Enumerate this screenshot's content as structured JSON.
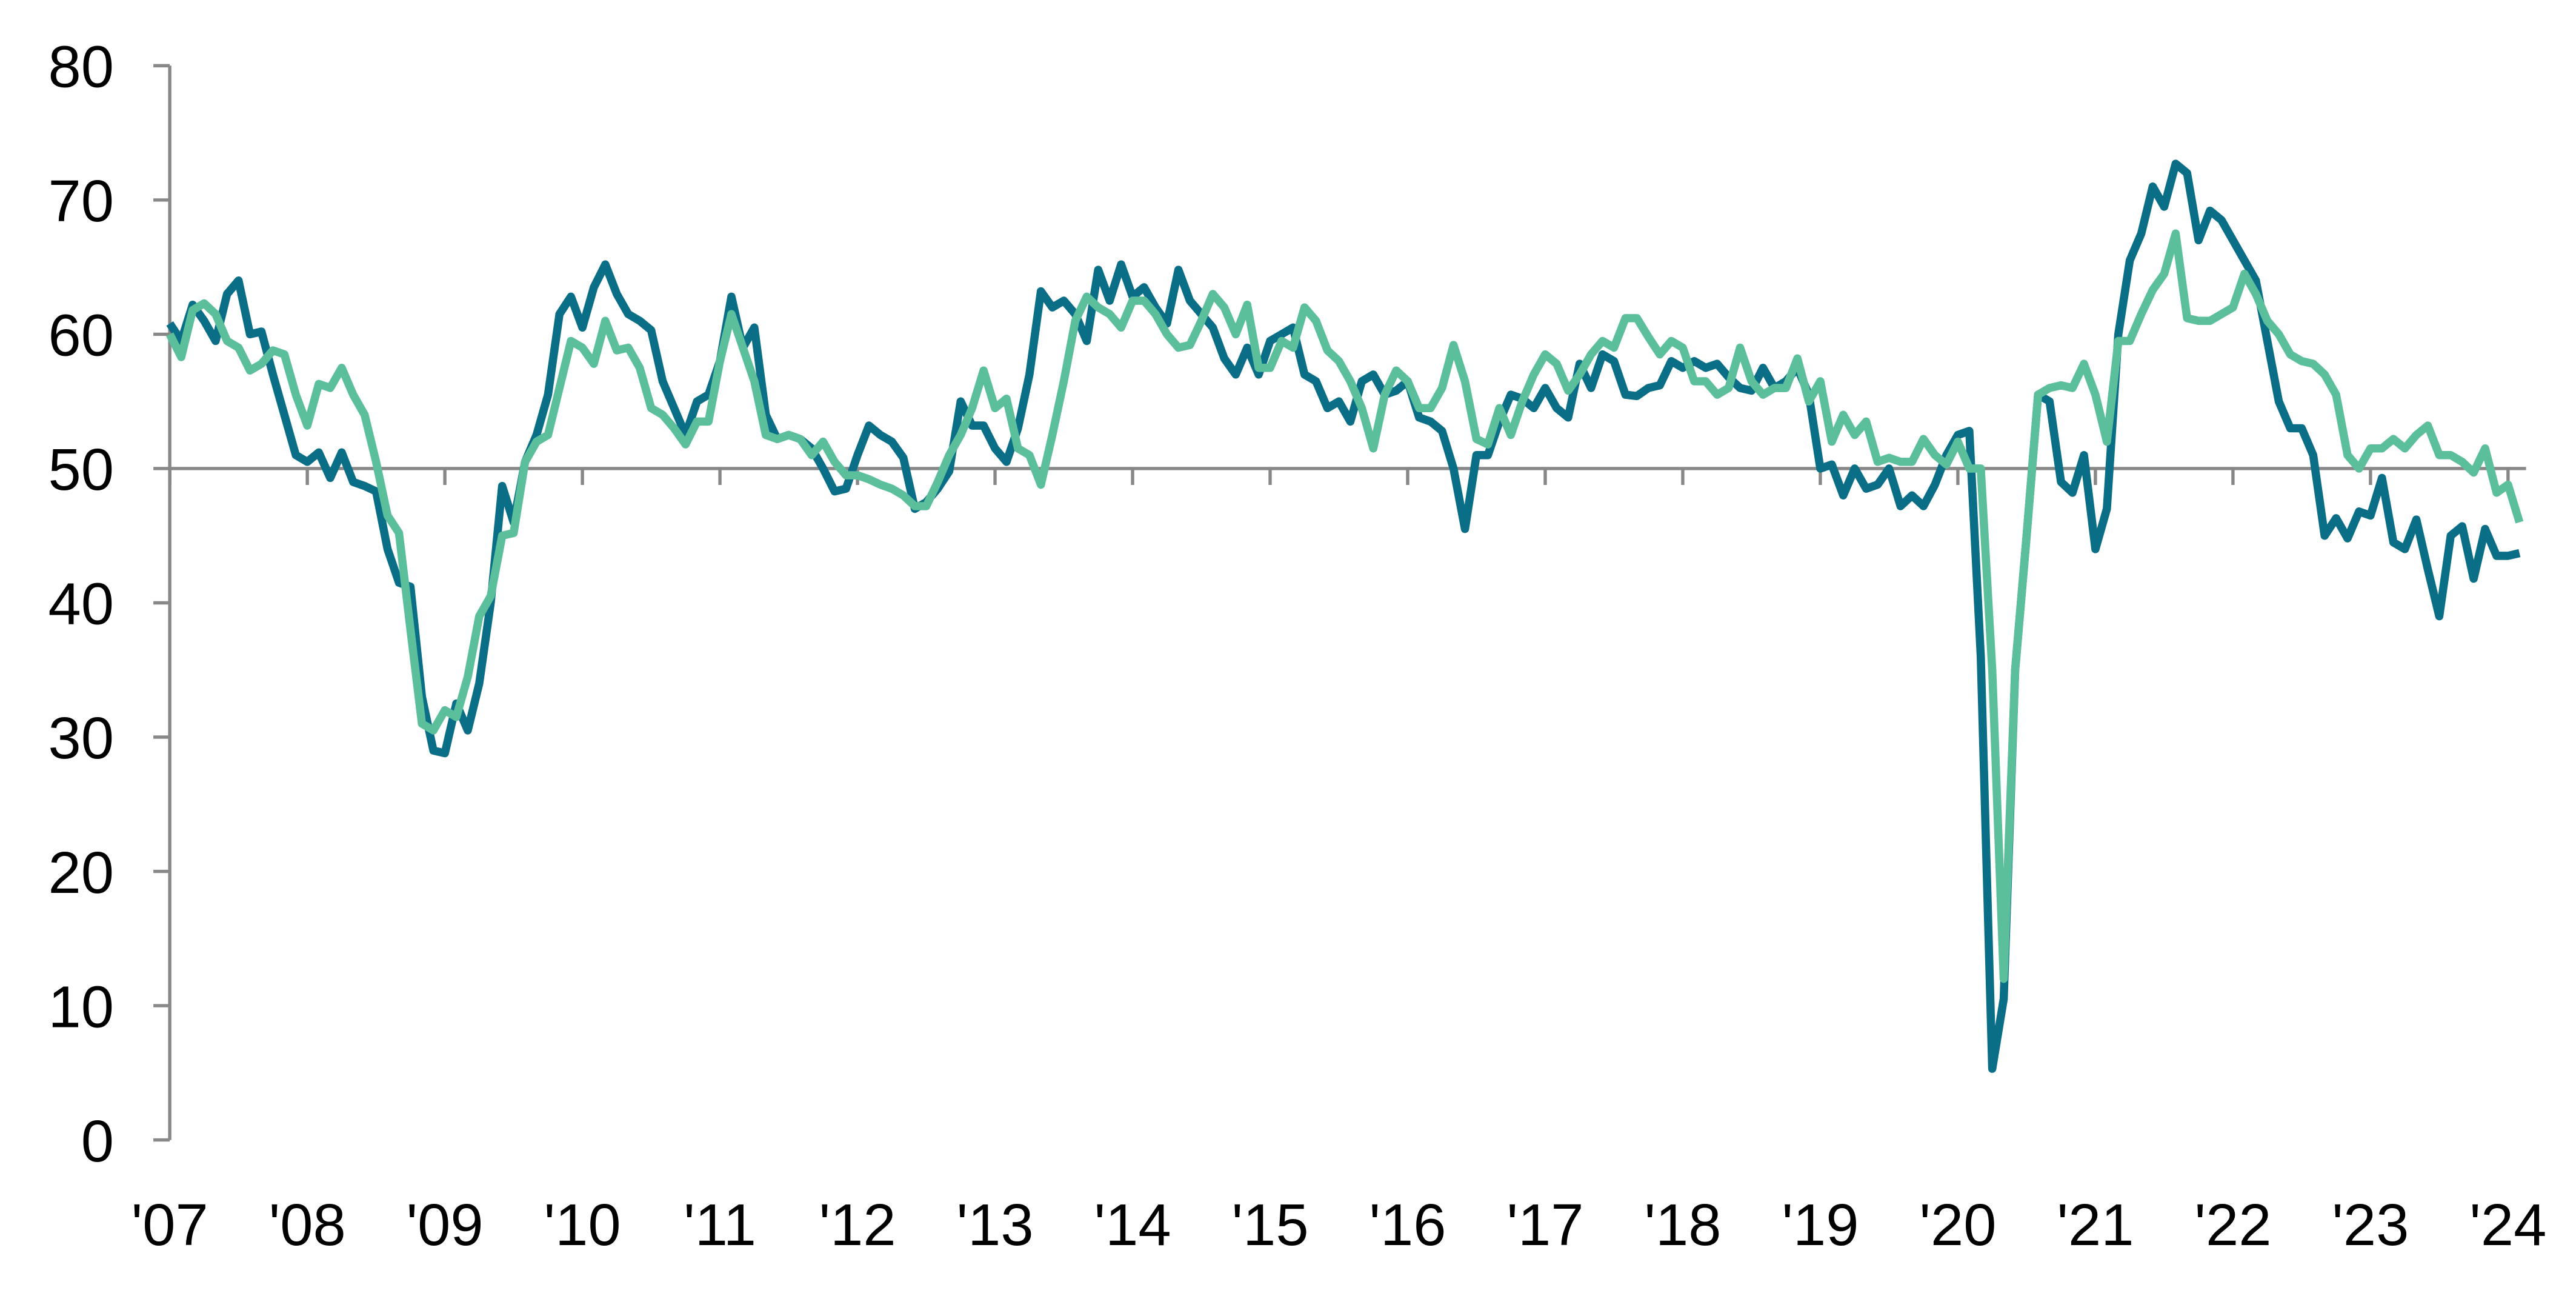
{
  "chart_data": {
    "type": "line",
    "categories": [
      "'07",
      null,
      null,
      null,
      null,
      null,
      null,
      null,
      null,
      null,
      null,
      null,
      "'08",
      null,
      null,
      null,
      null,
      null,
      null,
      null,
      null,
      null,
      null,
      null,
      "'09",
      null,
      null,
      null,
      null,
      null,
      null,
      null,
      null,
      null,
      null,
      null,
      "'10",
      null,
      null,
      null,
      null,
      null,
      null,
      null,
      null,
      null,
      null,
      null,
      "'11",
      null,
      null,
      null,
      null,
      null,
      null,
      null,
      null,
      null,
      null,
      null,
      "'12",
      null,
      null,
      null,
      null,
      null,
      null,
      null,
      null,
      null,
      null,
      null,
      "'13",
      null,
      null,
      null,
      null,
      null,
      null,
      null,
      null,
      null,
      null,
      null,
      "'14",
      null,
      null,
      null,
      null,
      null,
      null,
      null,
      null,
      null,
      null,
      null,
      "'15",
      null,
      null,
      null,
      null,
      null,
      null,
      null,
      null,
      null,
      null,
      null,
      "'16",
      null,
      null,
      null,
      null,
      null,
      null,
      null,
      null,
      null,
      null,
      null,
      "'17",
      null,
      null,
      null,
      null,
      null,
      null,
      null,
      null,
      null,
      null,
      null,
      "'18",
      null,
      null,
      null,
      null,
      null,
      null,
      null,
      null,
      null,
      null,
      null,
      "'19",
      null,
      null,
      null,
      null,
      null,
      null,
      null,
      null,
      null,
      null,
      null,
      "'20",
      null,
      null,
      null,
      null,
      null,
      null,
      null,
      null,
      null,
      null,
      null,
      "'21",
      null,
      null,
      null,
      null,
      null,
      null,
      null,
      null,
      null,
      null,
      null,
      "'22",
      null,
      null,
      null,
      null,
      null,
      null,
      null,
      null,
      null,
      null,
      null,
      "'23",
      null,
      null,
      null,
      null,
      null,
      null,
      null,
      null,
      null,
      null,
      null,
      "'24",
      null
    ],
    "series": [
      {
        "color": "#0b6e87",
        "values": [
          60.8,
          59.5,
          62.2,
          61,
          59.5,
          63,
          64,
          60,
          60.2,
          57,
          54,
          51,
          50.5,
          51.2,
          49.3,
          51.2,
          49,
          48.7,
          48.3,
          44,
          41.5,
          41.2,
          33,
          29,
          28.8,
          32.5,
          30.5,
          34,
          40,
          48.7,
          46,
          50.5,
          52.5,
          55.5,
          61.5,
          62.8,
          60.5,
          63.5,
          65.2,
          63,
          61.5,
          61,
          60.3,
          56.5,
          54.5,
          52.5,
          55,
          55.5,
          58,
          62.8,
          59,
          60.5,
          54,
          52.2,
          52.5,
          52.2,
          51.5,
          50,
          48.3,
          48.5,
          51,
          53.2,
          52.5,
          52,
          50.8,
          47,
          47.5,
          48.5,
          49.8,
          55,
          53.2,
          53.2,
          51.5,
          50.5,
          53,
          57,
          63.2,
          62,
          62.5,
          61.5,
          59.5,
          64.8,
          62.5,
          65.2,
          62.8,
          63.5,
          62,
          60.8,
          64.8,
          62.5,
          61.5,
          60.5,
          58.2,
          57,
          59,
          57,
          59.5,
          60,
          60.5,
          57,
          56.5,
          54.5,
          55,
          53.5,
          56.5,
          57,
          55.5,
          55.8,
          56.5,
          53.8,
          53.5,
          52.8,
          50,
          45.5,
          51,
          51,
          53.5,
          55.5,
          55.2,
          54.5,
          56,
          54.5,
          53.8,
          57.8,
          56,
          58.5,
          58,
          55.5,
          55.4,
          56,
          56.2,
          58,
          57.5,
          58,
          57.5,
          57.8,
          56.8,
          56,
          55.8,
          57.5,
          56,
          56.5,
          57.5,
          55.5,
          50,
          50.3,
          48,
          50,
          48.5,
          48.8,
          50,
          47.2,
          48,
          47.2,
          48.8,
          51,
          52.5,
          52.8,
          36,
          5.3,
          10.5,
          35,
          45,
          55.5,
          55,
          49,
          48.2,
          51,
          44,
          47,
          60,
          65.5,
          67.5,
          71,
          69.5,
          72.7,
          72,
          67,
          69.2,
          68.5,
          67,
          65.5,
          64,
          59.5,
          55,
          53,
          53,
          51,
          45,
          46.3,
          44.8,
          46.8,
          46.5,
          49.3,
          44.5,
          44,
          46.2,
          42.5,
          39,
          45,
          45.7,
          41.8,
          45.5,
          43.5,
          43.5,
          43.7
        ]
      },
      {
        "color": "#5cbf9c",
        "values": [
          60,
          58.3,
          61.8,
          62.3,
          61.5,
          59.5,
          59,
          57.3,
          57.8,
          58.8,
          58.5,
          55.5,
          53.2,
          56.3,
          56,
          57.5,
          55.5,
          54,
          50.5,
          46.5,
          45.2,
          38,
          31,
          30.5,
          32,
          31.5,
          34.5,
          39,
          40.5,
          45,
          45.2,
          50.5,
          52,
          52.5,
          56,
          59.5,
          59,
          57.8,
          61,
          58.8,
          59,
          57.5,
          54.5,
          54,
          53,
          51.8,
          53.5,
          53.5,
          58,
          61.5,
          59,
          56.5,
          52.5,
          52.2,
          52.5,
          52.2,
          51,
          52,
          50.5,
          49.5,
          49.5,
          49.2,
          48.8,
          48.5,
          48,
          47.2,
          47.2,
          49,
          51,
          52.5,
          54.5,
          57.3,
          54.5,
          55.2,
          51.5,
          51,
          48.8,
          52.5,
          56.5,
          61,
          62.8,
          62,
          61.5,
          60.5,
          62.5,
          62.5,
          61.5,
          60,
          59,
          59.2,
          61,
          63,
          62,
          60,
          62.2,
          57.5,
          57.5,
          59.5,
          59,
          62,
          61,
          58.8,
          58,
          56.5,
          54.5,
          51.5,
          55.5,
          57.3,
          56.5,
          54.5,
          54.5,
          56,
          59.2,
          56.5,
          52.2,
          51.8,
          54.5,
          52.5,
          55,
          57,
          58.5,
          57.8,
          55.8,
          57,
          58.5,
          59.5,
          59,
          61.2,
          61.2,
          59.8,
          58.5,
          59.5,
          59,
          56.5,
          56.5,
          55.5,
          56,
          59,
          56.5,
          55.5,
          56,
          56,
          58.2,
          55,
          56.5,
          52,
          54,
          52.5,
          53.5,
          50.5,
          50.8,
          50.5,
          50.5,
          52.2,
          51,
          50.3,
          52,
          50,
          50,
          35,
          12,
          35,
          45,
          55.5,
          56,
          56.2,
          56,
          57.8,
          55.5,
          52,
          59.5,
          59.5,
          61.5,
          63.3,
          64.5,
          67.5,
          61.2,
          61,
          61,
          61.5,
          62,
          64.5,
          63,
          61,
          60,
          58.5,
          58,
          57.8,
          57,
          55.5,
          51,
          50,
          51.5,
          51.5,
          52.2,
          51.5,
          52.5,
          53.2,
          51,
          51,
          50.5,
          49.7,
          51.5,
          48.2,
          48.8,
          46
        ]
      }
    ],
    "ylim": [
      0,
      80
    ],
    "yticks": [
      0,
      10,
      20,
      30,
      40,
      50,
      60,
      70,
      80
    ],
    "x_axis_at": 50,
    "grid": false
  }
}
